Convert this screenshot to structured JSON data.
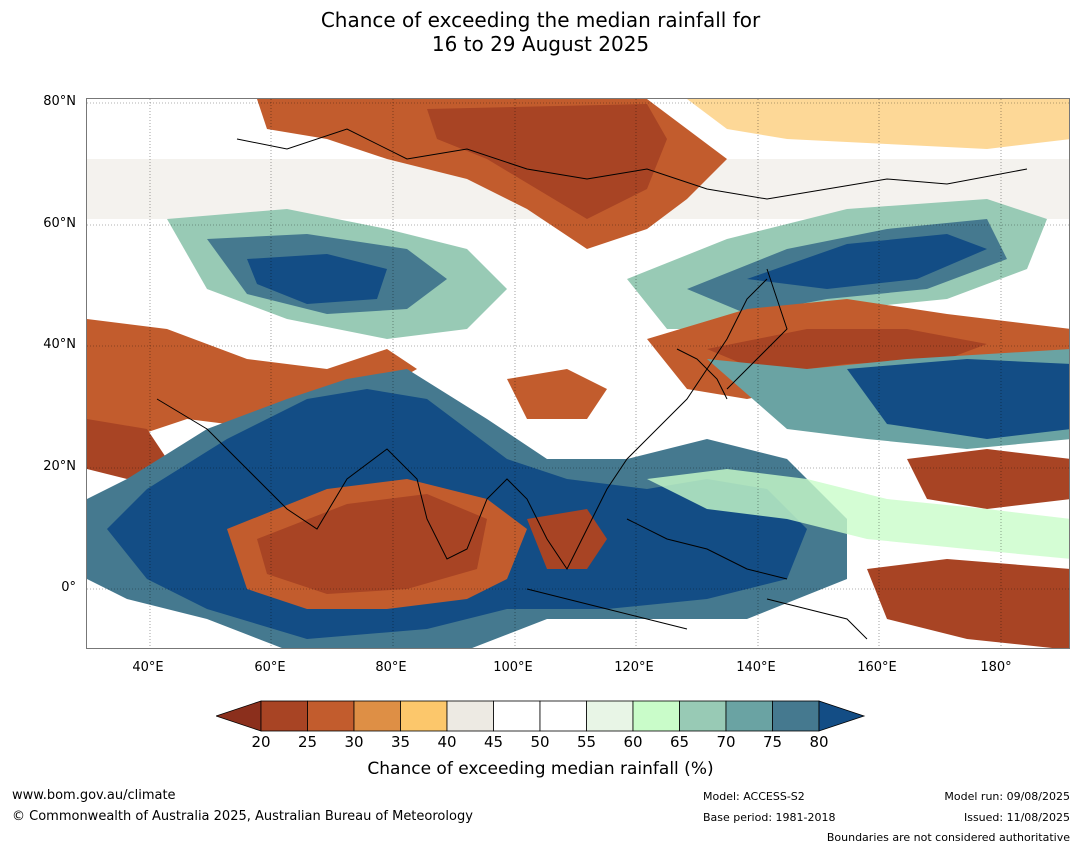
{
  "title": {
    "line1": "Chance of exceeding the median rainfall for",
    "line2": "16 to 29 August 2025"
  },
  "lat_labels": [
    "80°N",
    "60°N",
    "40°N",
    "20°N",
    "0°"
  ],
  "lon_labels": [
    "40°E",
    "60°E",
    "80°E",
    "100°E",
    "120°E",
    "140°E",
    "160°E",
    "180°"
  ],
  "colorbar": {
    "label": "Chance of exceeding median rainfall (%)",
    "ticks": [
      "20",
      "25",
      "30",
      "35",
      "40",
      "45",
      "50",
      "55",
      "60",
      "65",
      "70",
      "75",
      "80"
    ],
    "colors": [
      "#8b2f1c",
      "#a84424",
      "#c25c2d",
      "#de8f45",
      "#fcc76b",
      "#edeae3",
      "#ffffff",
      "#ffffff",
      "#e8f5e6",
      "#c9fcc9",
      "#98cab5",
      "#6aa3a3",
      "#45798f",
      "#134d85"
    ]
  },
  "footer": {
    "website": "www.bom.gov.au/climate",
    "copyright": "© Commonwealth of Australia 2025, Australian Bureau of Meteorology",
    "model": "Model: ACCESS-S2",
    "base_period": "Base period: 1981-2018",
    "model_run": "Model run: 09/08/2025",
    "issued": "Issued: 11/08/2025",
    "disclaimer": "Boundaries are not considered authoritative"
  }
}
